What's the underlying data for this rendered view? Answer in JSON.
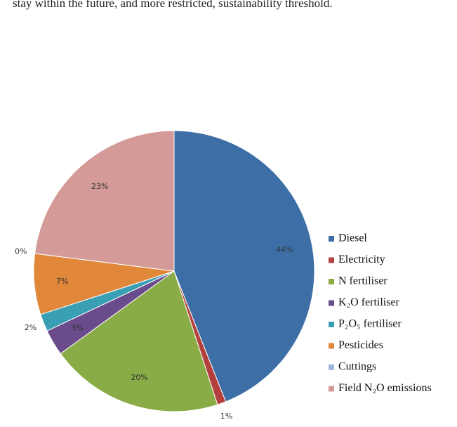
{
  "header_text": "stay within the future, and more restricted, sustainability threshold.",
  "chart_data": {
    "type": "pie",
    "categories": [
      "Diesel",
      "Electricity",
      "N fertiliser",
      "K₂O fertiliser",
      "P₂O₅ fertiliser",
      "Pesticides",
      "Cuttings",
      "Field N₂O emissions"
    ],
    "values": [
      44,
      1,
      20,
      3,
      2,
      7,
      0,
      23
    ],
    "value_labels": [
      "44%",
      "1%",
      "20%",
      "3%",
      "2%",
      "7%",
      "0%",
      "23%"
    ],
    "colors": [
      "#3d6fa6",
      "#b3403c",
      "#8aac47",
      "#6a4b8b",
      "#3b9fb4",
      "#e0873a",
      "#a0b6da",
      "#d39a97"
    ],
    "legend": "right"
  }
}
